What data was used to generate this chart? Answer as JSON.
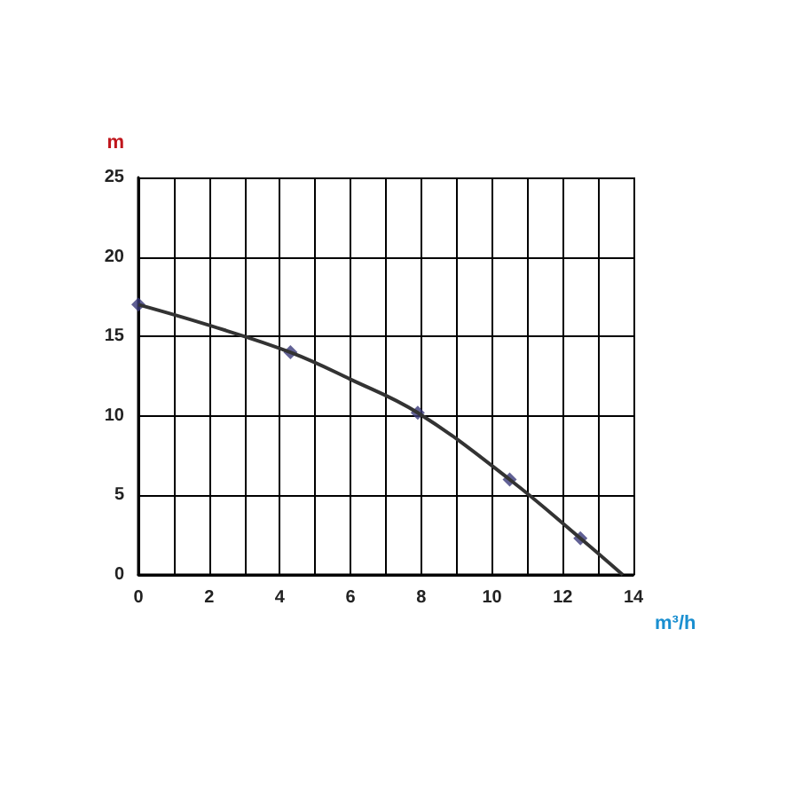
{
  "chart_data": {
    "type": "line",
    "xlabel": "m³/h",
    "ylabel": "m",
    "xlim": [
      0,
      14
    ],
    "ylim": [
      0,
      25
    ],
    "xticks": [
      0,
      {
        "value": 1,
        "label": null
      },
      2,
      {
        "value": 3,
        "label": null
      },
      4,
      {
        "value": 5,
        "label": null
      },
      6,
      {
        "value": 7,
        "label": null
      },
      8,
      {
        "value": 9,
        "label": null
      },
      10,
      {
        "value": 11,
        "label": null
      },
      12,
      {
        "value": 13,
        "label": null
      },
      14
    ],
    "yticks": [
      0,
      5,
      10,
      15,
      20,
      25
    ],
    "grid": true,
    "series": [
      {
        "color": "#333333",
        "marker": "none",
        "x": [
          0,
          2,
          4.3,
          6,
          7.9,
          10.5,
          12.5,
          13.7
        ],
        "values": [
          17,
          15.7,
          14,
          12.3,
          10.2,
          6,
          2.3,
          0
        ]
      },
      {
        "type": "scatter",
        "color": "#3a3a7a",
        "marker": "diamond",
        "x": [
          0,
          4.3,
          7.9,
          10.5,
          12.5
        ],
        "values": [
          17,
          14,
          10.2,
          6,
          2.3
        ]
      }
    ]
  }
}
